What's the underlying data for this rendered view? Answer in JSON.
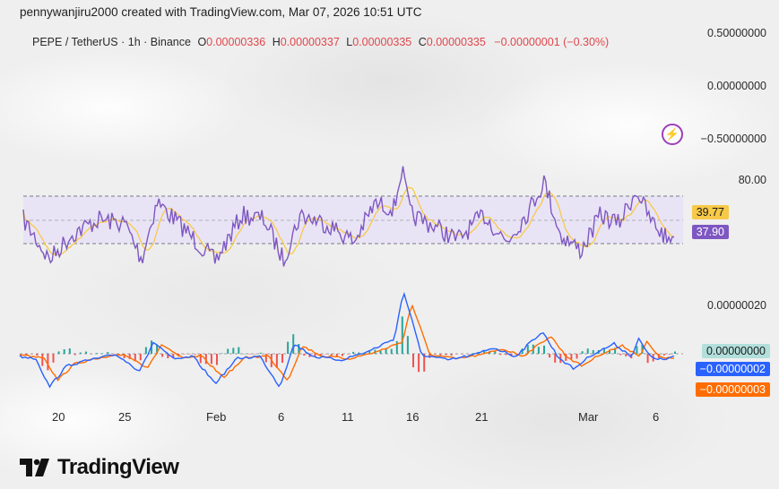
{
  "header": {
    "author_line": "pennywanjiru2000 created with TradingView.com, Mar 07, 2026 10:51 UTC",
    "symbol": "PEPE / TetherUS · 1h · Binance",
    "open_label": "O",
    "open_value": "0.00000336",
    "high_label": "H",
    "high_value": "0.00000337",
    "low_label": "L",
    "low_value": "0.00000335",
    "close_label": "C",
    "close_value": "0.00000335",
    "change": "−0.00000001 (−0.30%)"
  },
  "price_axis": [
    "0.50000000",
    "0.00000000",
    "−0.50000000"
  ],
  "rsi_panel": {
    "axis_label": "80.00",
    "ma_value": "39.77",
    "rsi_value": "37.90",
    "ma_color": "#f7c948",
    "rsi_color": "#7e57c2",
    "band_color": "#e8e2f6"
  },
  "macd_panel": {
    "axis_label": "0.00000020",
    "histogram_value": "0.00000000",
    "macd_value": "−0.00000002",
    "signal_value": "−0.00000003",
    "histogram_tag_color": "#b2dfdb",
    "macd_color": "#2962ff",
    "signal_color": "#ff6d00"
  },
  "x_axis": [
    "20",
    "25",
    "Feb",
    "6",
    "11",
    "16",
    "21",
    "Mar",
    "6"
  ],
  "icons": {
    "alert": "lightning-icon",
    "brand": "tradingview-logo-icon"
  },
  "brand": {
    "name": "TradingView"
  }
}
